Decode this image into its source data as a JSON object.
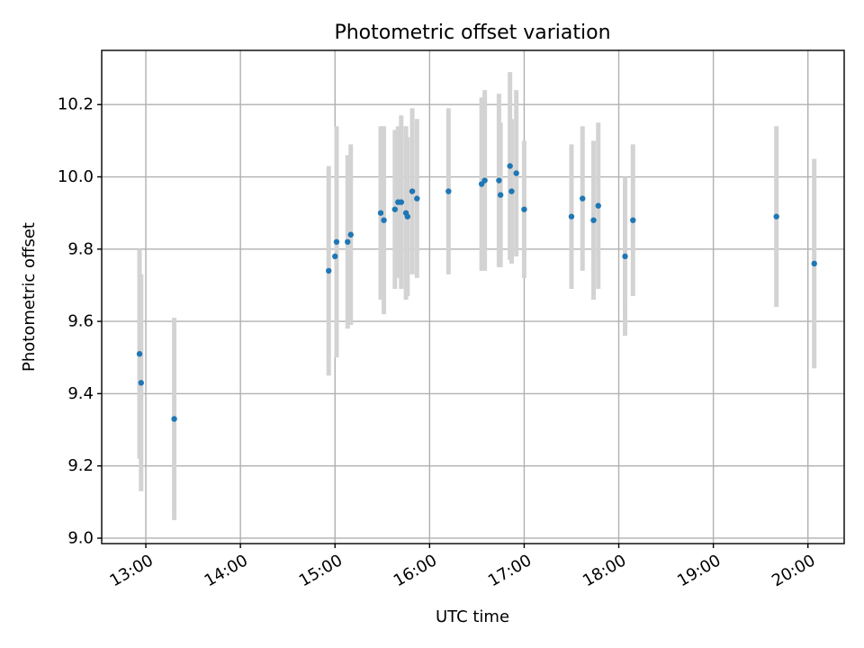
{
  "chart_data": {
    "type": "scatter",
    "title": "Photometric offset variation",
    "xlabel": "UTC time",
    "ylabel": "Photometric offset",
    "xlim": [
      "12:32",
      "20:23"
    ],
    "ylim": [
      8.985,
      10.35
    ],
    "x_ticks": [
      "13:00",
      "14:00",
      "15:00",
      "16:00",
      "17:00",
      "18:00",
      "19:00",
      "20:00"
    ],
    "y_ticks": [
      "9.0",
      "9.2",
      "9.4",
      "9.6",
      "9.8",
      "10.0",
      "10.2"
    ],
    "grid": true,
    "error_bar_color": "#d3d3d3",
    "point_color": "#1f77b4",
    "series": [
      {
        "points": [
          {
            "x": "12:56",
            "y": 9.51,
            "yerr": 0.29
          },
          {
            "x": "12:57",
            "y": 9.43,
            "yerr": 0.3
          },
          {
            "x": "13:18",
            "y": 9.33,
            "yerr": 0.28
          },
          {
            "x": "14:56",
            "y": 9.74,
            "yerr": 0.29
          },
          {
            "x": "15:00",
            "y": 9.78,
            "yerr": 0.0
          },
          {
            "x": "15:01",
            "y": 9.82,
            "yerr": 0.32
          },
          {
            "x": "15:08",
            "y": 9.82,
            "yerr": 0.24
          },
          {
            "x": "15:10",
            "y": 9.84,
            "yerr": 0.25
          },
          {
            "x": "15:29",
            "y": 9.9,
            "yerr": 0.24
          },
          {
            "x": "15:31",
            "y": 9.88,
            "yerr": 0.26
          },
          {
            "x": "15:38",
            "y": 9.91,
            "yerr": 0.22
          },
          {
            "x": "15:40",
            "y": 9.93,
            "yerr": 0.21
          },
          {
            "x": "15:42",
            "y": 9.93,
            "yerr": 0.24
          },
          {
            "x": "15:45",
            "y": 9.9,
            "yerr": 0.24
          },
          {
            "x": "15:46",
            "y": 9.89,
            "yerr": 0.22
          },
          {
            "x": "15:49",
            "y": 9.96,
            "yerr": 0.23
          },
          {
            "x": "15:52",
            "y": 9.94,
            "yerr": 0.22
          },
          {
            "x": "16:12",
            "y": 9.96,
            "yerr": 0.23
          },
          {
            "x": "16:33",
            "y": 9.98,
            "yerr": 0.24
          },
          {
            "x": "16:35",
            "y": 9.99,
            "yerr": 0.25
          },
          {
            "x": "16:44",
            "y": 9.99,
            "yerr": 0.24
          },
          {
            "x": "16:45",
            "y": 9.95,
            "yerr": 0.2
          },
          {
            "x": "16:51",
            "y": 10.03,
            "yerr": 0.26
          },
          {
            "x": "16:52",
            "y": 9.96,
            "yerr": 0.2
          },
          {
            "x": "16:55",
            "y": 10.01,
            "yerr": 0.23
          },
          {
            "x": "17:00",
            "y": 9.91,
            "yerr": 0.19
          },
          {
            "x": "17:30",
            "y": 9.89,
            "yerr": 0.2
          },
          {
            "x": "17:37",
            "y": 9.94,
            "yerr": 0.2
          },
          {
            "x": "17:44",
            "y": 9.88,
            "yerr": 0.22
          },
          {
            "x": "17:47",
            "y": 9.92,
            "yerr": 0.23
          },
          {
            "x": "18:04",
            "y": 9.78,
            "yerr": 0.22
          },
          {
            "x": "18:09",
            "y": 9.88,
            "yerr": 0.21
          },
          {
            "x": "19:40",
            "y": 9.89,
            "yerr": 0.25
          },
          {
            "x": "20:04",
            "y": 9.76,
            "yerr": 0.29
          }
        ]
      }
    ]
  }
}
